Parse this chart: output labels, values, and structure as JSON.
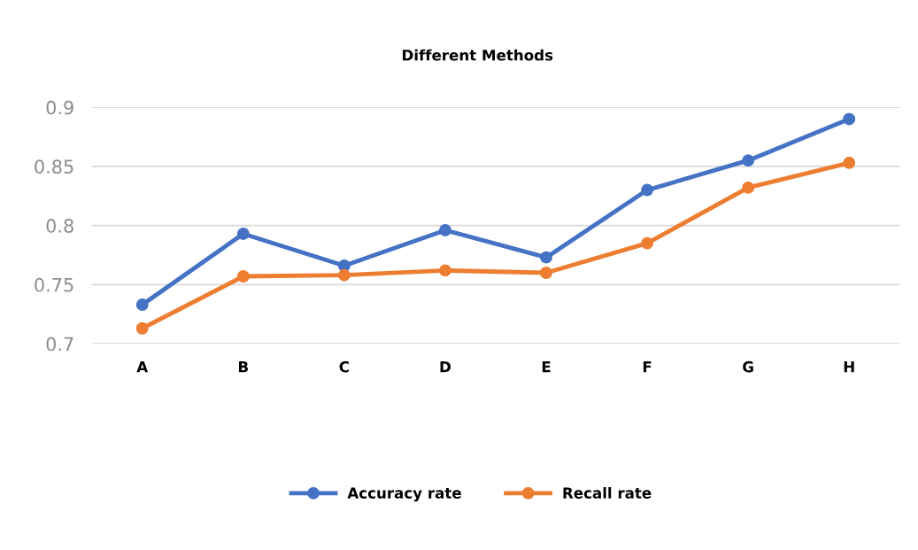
{
  "chart_data": {
    "type": "line",
    "title": "Different Methods",
    "categories": [
      "A",
      "B",
      "C",
      "D",
      "E",
      "F",
      "G",
      "H"
    ],
    "series": [
      {
        "name": "Accuracy rate",
        "color": "#4472c4",
        "values": [
          0.733,
          0.793,
          0.766,
          0.796,
          0.773,
          0.83,
          0.855,
          0.89
        ]
      },
      {
        "name": "Recall rate",
        "color": "#ed7d31",
        "values": [
          0.713,
          0.757,
          0.758,
          0.762,
          0.76,
          0.785,
          0.832,
          0.853
        ]
      }
    ],
    "ylim": [
      0.7,
      0.9
    ],
    "yticks": [
      0.7,
      0.75,
      0.8,
      0.85,
      0.9
    ],
    "grid": "y",
    "legend": "bottom",
    "marker": "circle",
    "line_style": "solid"
  }
}
